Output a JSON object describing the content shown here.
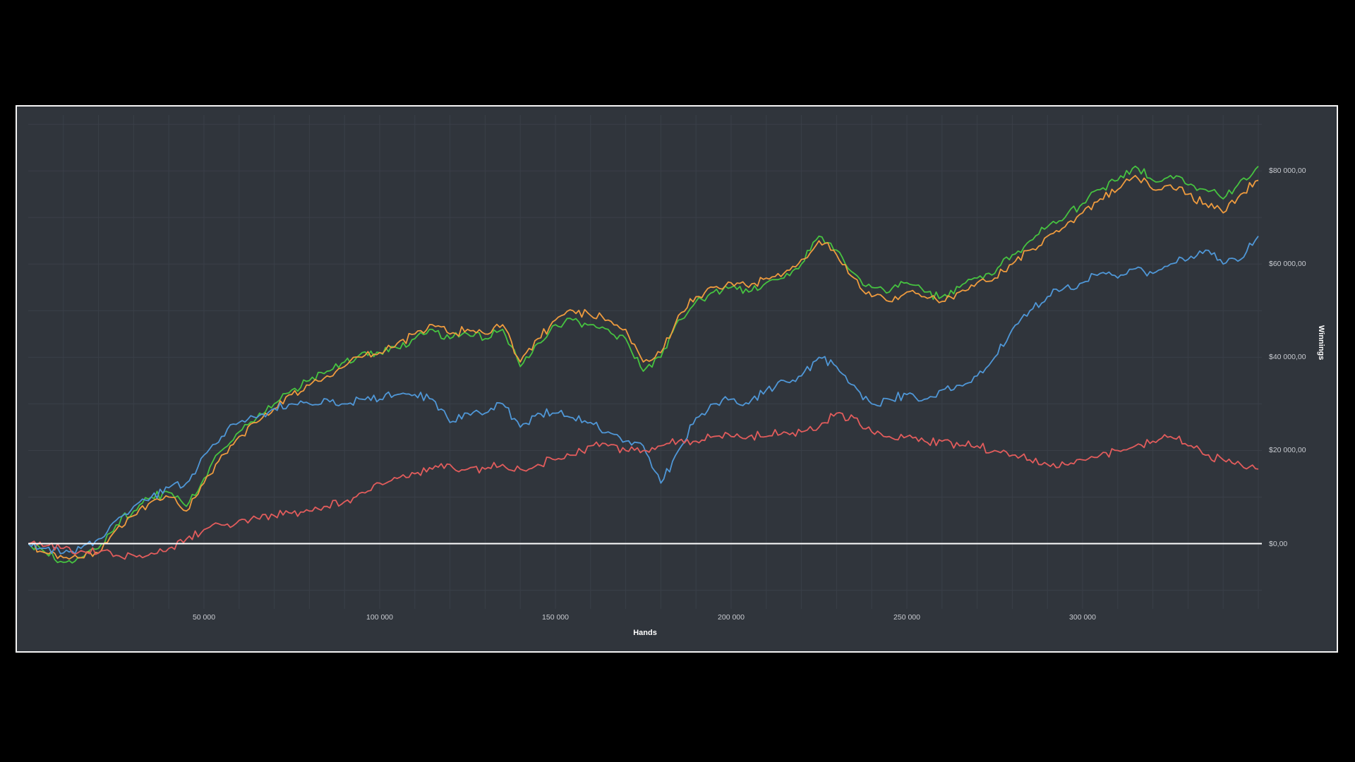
{
  "panel": {
    "background": "#30353c",
    "border_color": "#f5f5f5",
    "grid_color": "#3a3f48"
  },
  "axes": {
    "x_title": "Hands",
    "y_title": "Winnings",
    "x_ticks": [
      {
        "value": 50000,
        "label": "50 000"
      },
      {
        "value": 100000,
        "label": "100 000"
      },
      {
        "value": 150000,
        "label": "150 000"
      },
      {
        "value": 200000,
        "label": "200 000"
      },
      {
        "value": 250000,
        "label": "250 000"
      },
      {
        "value": 300000,
        "label": "300 000"
      }
    ],
    "y_ticks": [
      {
        "value": 0,
        "label": "$0,00"
      },
      {
        "value": 20000,
        "label": "$20 000,00"
      },
      {
        "value": 40000,
        "label": "$40 000,00"
      },
      {
        "value": 60000,
        "label": "$60 000,00"
      },
      {
        "value": 80000,
        "label": "$80 000,00"
      }
    ]
  },
  "chart_data": {
    "type": "line",
    "title": "",
    "xlabel": "Hands",
    "ylabel": "Winnings",
    "xlim": [
      0,
      351000
    ],
    "ylim": [
      -14000,
      92000
    ],
    "grid": true,
    "grid_x_step": 10000,
    "grid_y_step": 10000,
    "legend": "none",
    "zero_line": 0,
    "zero_line_color": "#ffffff",
    "x_start": 0,
    "x_step": 5000,
    "series": [
      {
        "name": "green-line",
        "color": "#46c340",
        "values": [
          0,
          -2000,
          -4000,
          -3000,
          -1000,
          4000,
          7000,
          10000,
          11000,
          8000,
          14000,
          20000,
          24000,
          27000,
          30000,
          33000,
          35000,
          37000,
          39000,
          41000,
          41000,
          42000,
          44000,
          46000,
          44000,
          45000,
          44000,
          46000,
          38000,
          43000,
          47000,
          48000,
          47000,
          46000,
          44000,
          37000,
          40000,
          48000,
          52000,
          54000,
          55000,
          54000,
          56000,
          57000,
          60000,
          66000,
          63000,
          58000,
          55000,
          54000,
          56000,
          54000,
          53000,
          55000,
          57000,
          58000,
          62000,
          65000,
          68000,
          70000,
          73000,
          76000,
          78000,
          81000,
          78000,
          79000,
          77000,
          76000,
          74000,
          78000,
          81000
        ]
      },
      {
        "name": "orange-line",
        "color": "#ef9b3e",
        "values": [
          0,
          -2000,
          -3000,
          -3000,
          -2000,
          3000,
          6000,
          9000,
          10000,
          7000,
          13000,
          19000,
          23000,
          26000,
          29000,
          32000,
          34000,
          36000,
          38000,
          40000,
          41000,
          43000,
          45000,
          47000,
          45000,
          46000,
          45000,
          47000,
          39000,
          44000,
          48000,
          50000,
          49000,
          48000,
          46000,
          39000,
          41000,
          49000,
          53000,
          55000,
          56000,
          55000,
          57000,
          58000,
          61000,
          65000,
          62000,
          57000,
          53000,
          52000,
          54000,
          53000,
          52000,
          54000,
          56000,
          57000,
          60000,
          63000,
          66000,
          68000,
          71000,
          74000,
          76000,
          79000,
          76000,
          77000,
          75000,
          73000,
          71000,
          75000,
          78000
        ]
      },
      {
        "name": "blue-line",
        "color": "#4f97d7",
        "values": [
          0,
          -1000,
          -2000,
          -1000,
          1000,
          5000,
          8000,
          10000,
          12000,
          13000,
          19000,
          23000,
          26000,
          27000,
          29000,
          30000,
          30000,
          31000,
          30000,
          31000,
          31000,
          32000,
          32000,
          31000,
          26000,
          28000,
          28000,
          30000,
          25000,
          28000,
          28000,
          27000,
          26000,
          24000,
          22000,
          21000,
          13000,
          20000,
          27000,
          30000,
          31000,
          30000,
          33000,
          35000,
          36000,
          40000,
          38000,
          34000,
          30000,
          31000,
          32000,
          31000,
          33000,
          34000,
          36000,
          40000,
          46000,
          50000,
          53000,
          55000,
          56000,
          58000,
          57000,
          59000,
          58000,
          60000,
          61000,
          63000,
          60000,
          61000,
          66000
        ]
      },
      {
        "name": "red-line",
        "color": "#e25c5c",
        "values": [
          0,
          -500,
          -1000,
          -1500,
          -2000,
          -2500,
          -2500,
          -2000,
          -1000,
          1000,
          3000,
          4000,
          5000,
          5500,
          6000,
          6500,
          7000,
          8000,
          9000,
          11000,
          13000,
          14000,
          15000,
          16000,
          17000,
          16000,
          16000,
          17000,
          16000,
          17000,
          18000,
          19000,
          21000,
          21000,
          20000,
          20000,
          21000,
          22000,
          22000,
          23000,
          23000,
          23000,
          23000,
          24000,
          24000,
          25000,
          28000,
          27000,
          24000,
          23000,
          23000,
          22000,
          22000,
          21000,
          21000,
          20000,
          19000,
          18000,
          17000,
          17000,
          18000,
          19000,
          20000,
          21000,
          22000,
          23000,
          21000,
          19000,
          18000,
          17000,
          16000
        ]
      }
    ]
  }
}
